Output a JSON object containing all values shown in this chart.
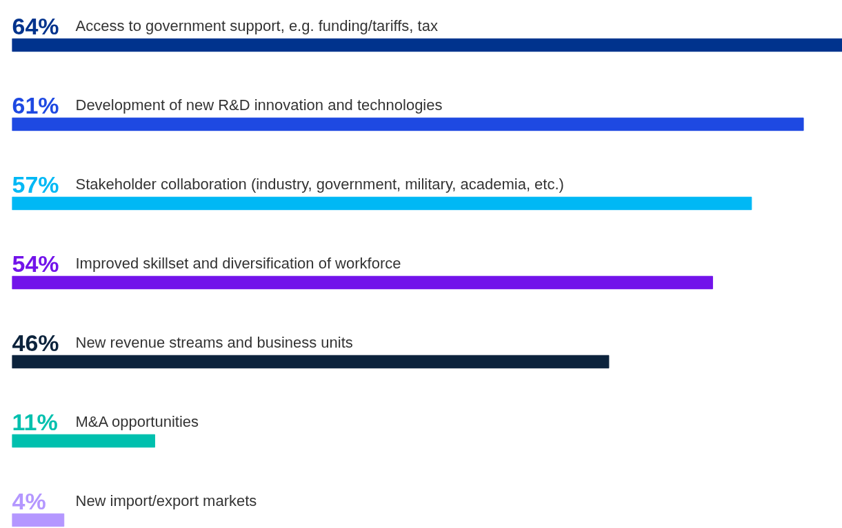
{
  "chart_data": {
    "type": "bar",
    "orientation": "horizontal",
    "categories": [
      "Access to government support, e.g. funding/tariffs, tax",
      "Development of new R&D innovation and technologies",
      "Stakeholder collaboration (industry, government, military, academia, etc.)",
      "Improved skillset and diversification of workforce",
      "New revenue streams and business units",
      "M&A opportunities",
      "New import/export markets"
    ],
    "values": [
      64,
      61,
      57,
      54,
      46,
      11,
      4
    ],
    "colors": [
      "#00338d",
      "#1e49e2",
      "#00b8f5",
      "#7213ea",
      "#0c233c",
      "#00c0ae",
      "#b497ff"
    ],
    "value_labels": [
      "64%",
      "61%",
      "57%",
      "54%",
      "46%",
      "11%",
      "4%"
    ],
    "xlim": [
      0,
      64
    ],
    "tick_labels": false
  }
}
